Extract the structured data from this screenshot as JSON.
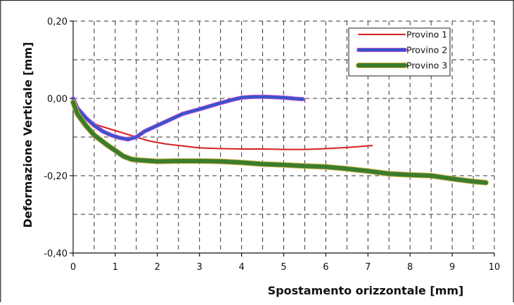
{
  "chart_data": {
    "type": "line",
    "xlabel": "Spostamento orizzontale [mm]",
    "ylabel": "Deformazione Verticale [mm]",
    "xlim": [
      0,
      10
    ],
    "ylim": [
      -0.4,
      0.2
    ],
    "x_ticks": [
      0,
      1,
      2,
      3,
      4,
      5,
      6,
      7,
      8,
      9,
      10
    ],
    "x_tick_labels": [
      "0",
      "1",
      "2",
      "3",
      "4",
      "5",
      "6",
      "7",
      "8",
      "9",
      "10"
    ],
    "y_ticks": [
      0.2,
      0.0,
      -0.2,
      -0.4
    ],
    "y_tick_labels": [
      "0,20",
      "0,00",
      "-0,20",
      "-0,40"
    ],
    "grid": true,
    "legend_position": "top-right",
    "series": [
      {
        "name": "Provino 1",
        "color": "#d42020",
        "outline": "#d42020",
        "x": [
          0.0,
          0.1,
          0.3,
          0.6,
          0.9,
          1.2,
          1.5,
          1.8,
          2.2,
          2.6,
          3.0,
          3.5,
          4.0,
          4.5,
          5.0,
          5.5,
          6.0,
          6.5,
          7.0,
          7.1
        ],
        "y": [
          0.0,
          -0.03,
          -0.055,
          -0.07,
          -0.08,
          -0.09,
          -0.1,
          -0.11,
          -0.118,
          -0.123,
          -0.128,
          -0.13,
          -0.131,
          -0.131,
          -0.132,
          -0.132,
          -0.13,
          -0.127,
          -0.123,
          -0.122
        ]
      },
      {
        "name": "Provino 2",
        "color": "#3355cc",
        "outline": "#c84fd0",
        "x": [
          0.0,
          0.1,
          0.3,
          0.5,
          0.7,
          0.9,
          1.1,
          1.3,
          1.5,
          1.7,
          2.0,
          2.3,
          2.6,
          3.0,
          3.4,
          3.8,
          4.0,
          4.3,
          4.6,
          5.0,
          5.3,
          5.45
        ],
        "y": [
          0.0,
          -0.025,
          -0.05,
          -0.07,
          -0.085,
          -0.095,
          -0.102,
          -0.106,
          -0.1,
          -0.085,
          -0.07,
          -0.055,
          -0.04,
          -0.028,
          -0.015,
          -0.003,
          0.002,
          0.004,
          0.004,
          0.002,
          -0.001,
          -0.002
        ]
      },
      {
        "name": "Provino 3",
        "color": "#3a7d2c",
        "outline": "#d2b250",
        "x": [
          0.0,
          0.1,
          0.3,
          0.5,
          0.8,
          1.0,
          1.2,
          1.4,
          1.6,
          2.0,
          2.5,
          3.0,
          3.5,
          4.0,
          4.5,
          5.0,
          5.5,
          6.0,
          6.5,
          7.0,
          7.5,
          8.0,
          8.5,
          9.0,
          9.5,
          9.8
        ],
        "y": [
          -0.01,
          -0.04,
          -0.07,
          -0.095,
          -0.12,
          -0.135,
          -0.15,
          -0.158,
          -0.16,
          -0.163,
          -0.162,
          -0.162,
          -0.163,
          -0.166,
          -0.17,
          -0.172,
          -0.175,
          -0.177,
          -0.182,
          -0.188,
          -0.195,
          -0.198,
          -0.2,
          -0.208,
          -0.215,
          -0.218
        ]
      }
    ]
  }
}
